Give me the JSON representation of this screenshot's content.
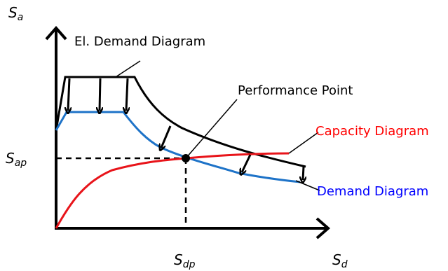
{
  "axes": {
    "y_label": "S",
    "y_sub": "a",
    "x_label": "S",
    "x_sub": "d",
    "sap_label": "S",
    "sap_sub": "ap",
    "sdp_label": "S",
    "sdp_sub": "dp"
  },
  "labels": {
    "elastic_demand": "El. Demand Diagram",
    "performance_point": "Performance Point",
    "capacity": "Capacity Diagram",
    "demand": "Demand Diagram"
  },
  "colors": {
    "capacity": "#e8141a",
    "demand": "#1e73c8",
    "elastic": "#000000",
    "capacity_text": "#ff0000",
    "demand_text": "#0000ff"
  }
}
